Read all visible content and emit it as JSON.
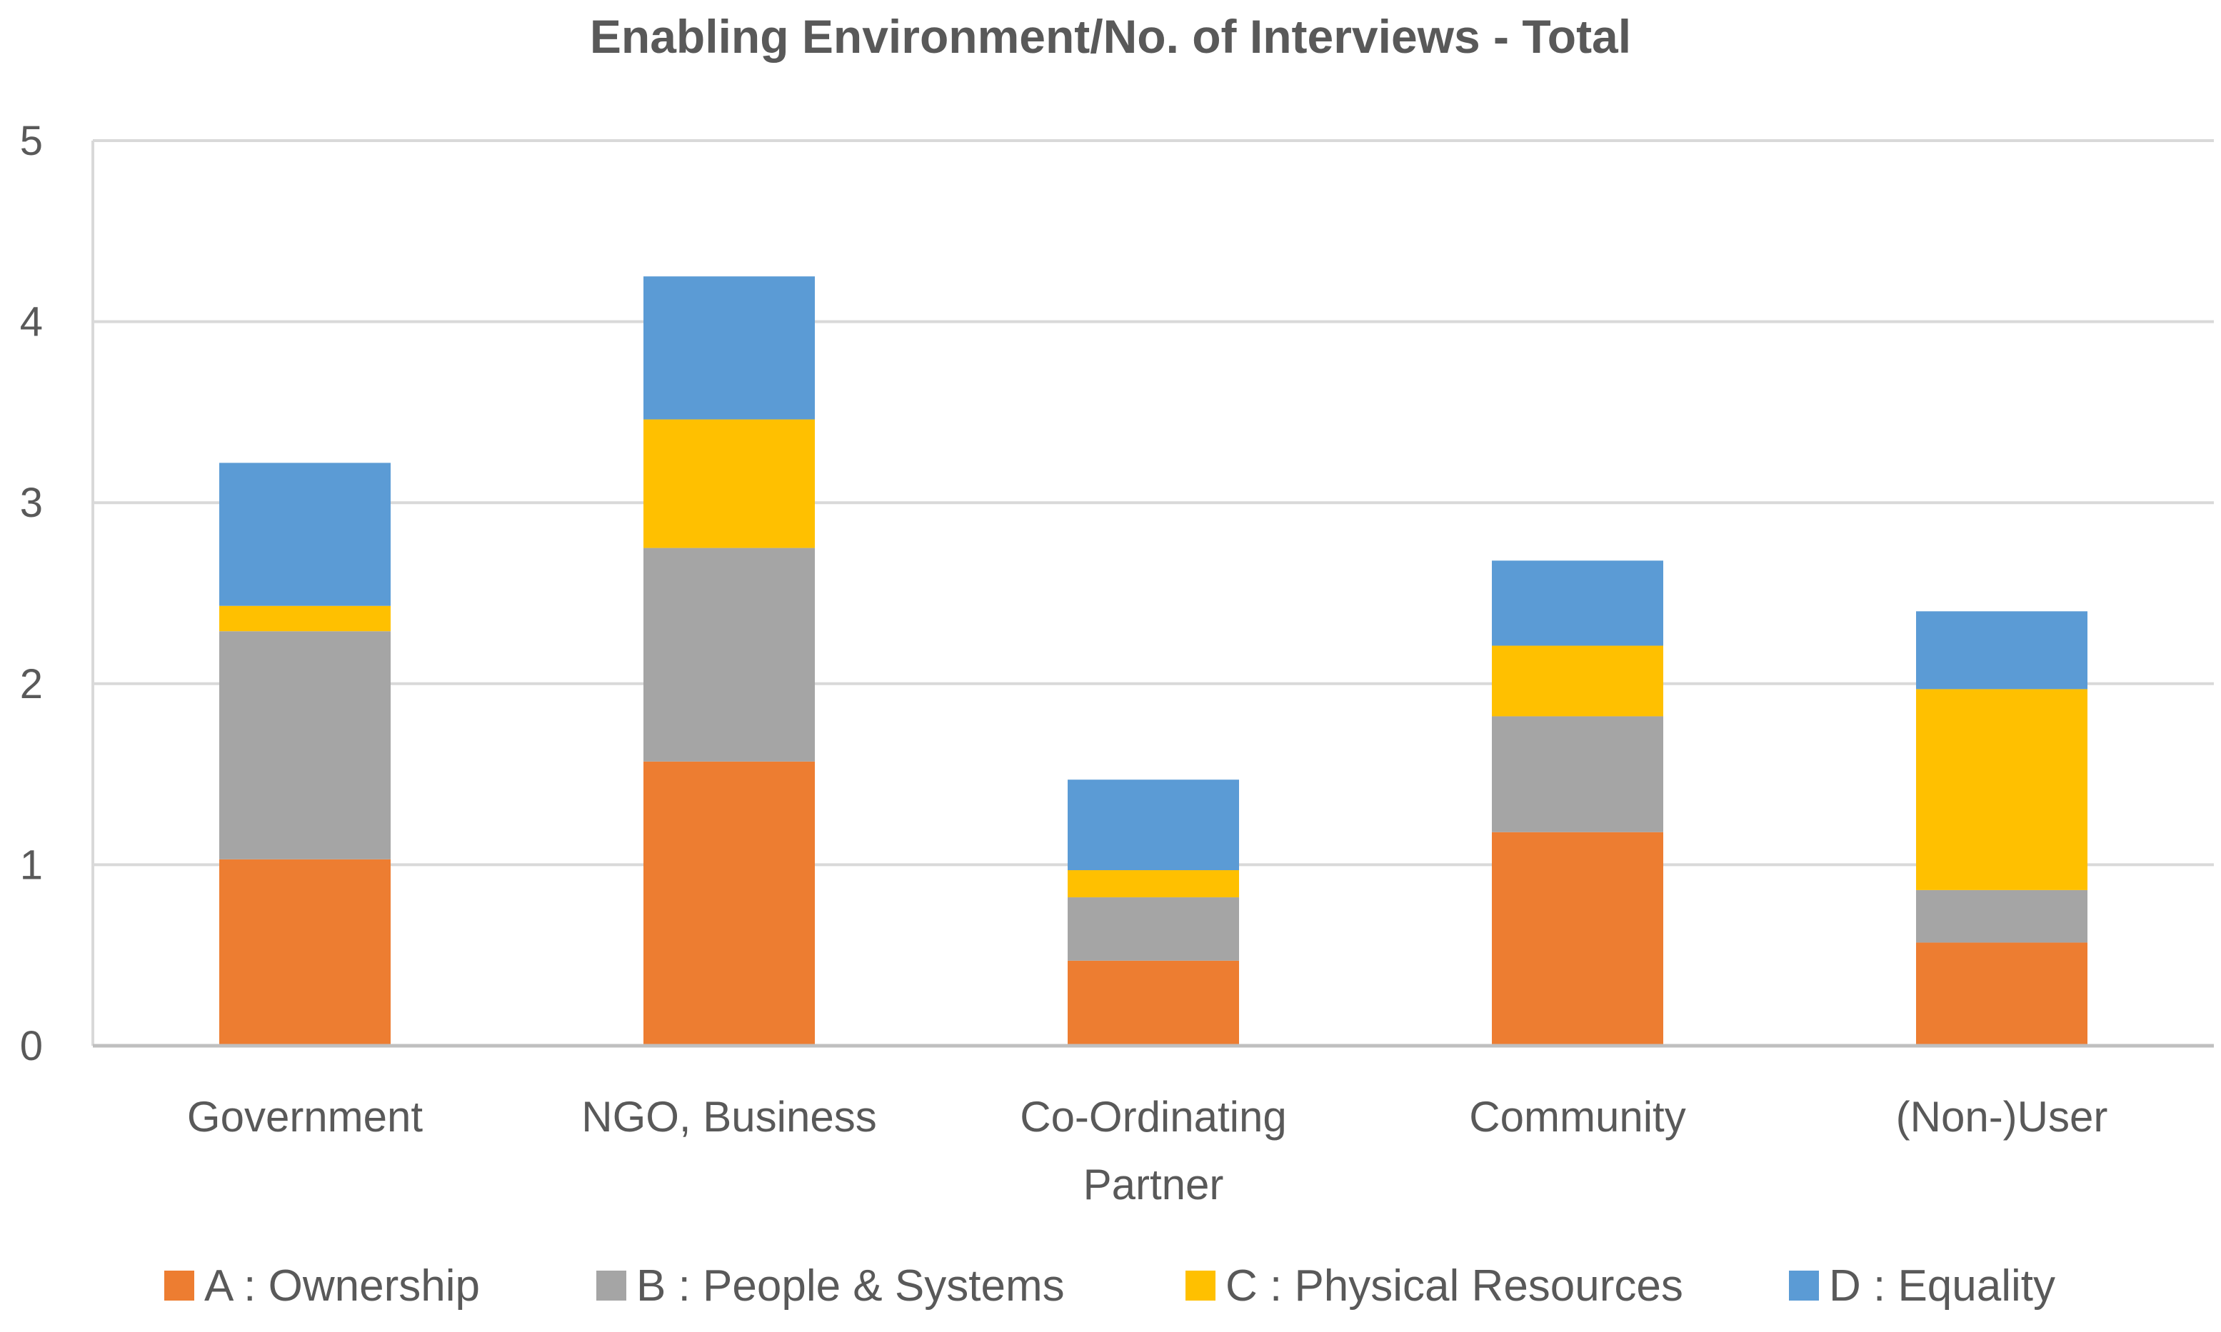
{
  "chart_data": {
    "type": "bar",
    "stacked": true,
    "title": "Enabling Environment/No. of Interviews - Total",
    "xlabel": "",
    "ylabel": "",
    "ylim": [
      0,
      5
    ],
    "yticks": [
      "0",
      "1",
      "2",
      "3",
      "4",
      "5"
    ],
    "grid": true,
    "legend_position": "bottom",
    "categories": [
      [
        "Government"
      ],
      [
        "NGO, Business"
      ],
      [
        "Co-Ordinating",
        "Partner"
      ],
      [
        "Community"
      ],
      [
        "(Non-)User"
      ]
    ],
    "series": [
      {
        "name": "A : Ownership",
        "color": "#ED7D31",
        "values": [
          1.03,
          1.57,
          0.47,
          1.18,
          0.57
        ]
      },
      {
        "name": "B : People & Systems",
        "color": "#A5A5A5",
        "values": [
          1.26,
          1.18,
          0.35,
          0.64,
          0.29
        ]
      },
      {
        "name": "C : Physical Resources",
        "color": "#FFC000",
        "values": [
          0.14,
          0.71,
          0.15,
          0.39,
          1.11
        ]
      },
      {
        "name": "D : Equality",
        "color": "#5B9BD5",
        "values": [
          0.79,
          0.79,
          0.5,
          0.47,
          0.43
        ]
      }
    ]
  }
}
